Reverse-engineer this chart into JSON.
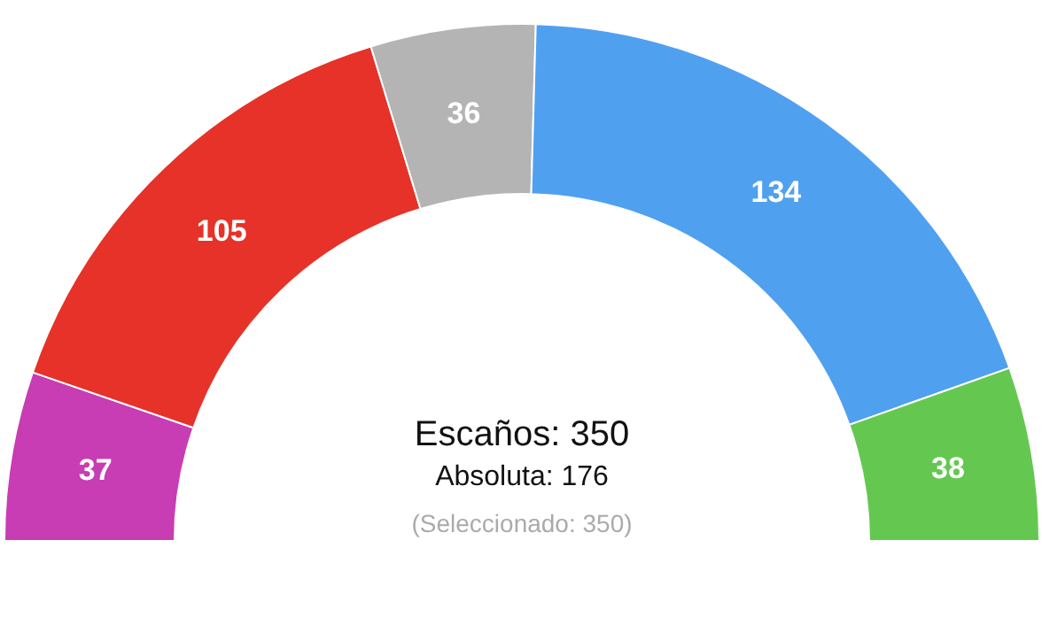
{
  "chart_data": {
    "type": "donut",
    "categories": [
      null,
      null,
      null,
      null,
      null
    ],
    "values": [
      37,
      105,
      36,
      134,
      38
    ],
    "colors": [
      "#c83cb4",
      "#e63228",
      "#b4b4b4",
      "#50a0f0",
      "#64c850"
    ],
    "data_labels": true,
    "annotations": [
      "Escaños: 350",
      "Absoluta: 176",
      "(Seleccionado: 350)"
    ]
  }
}
